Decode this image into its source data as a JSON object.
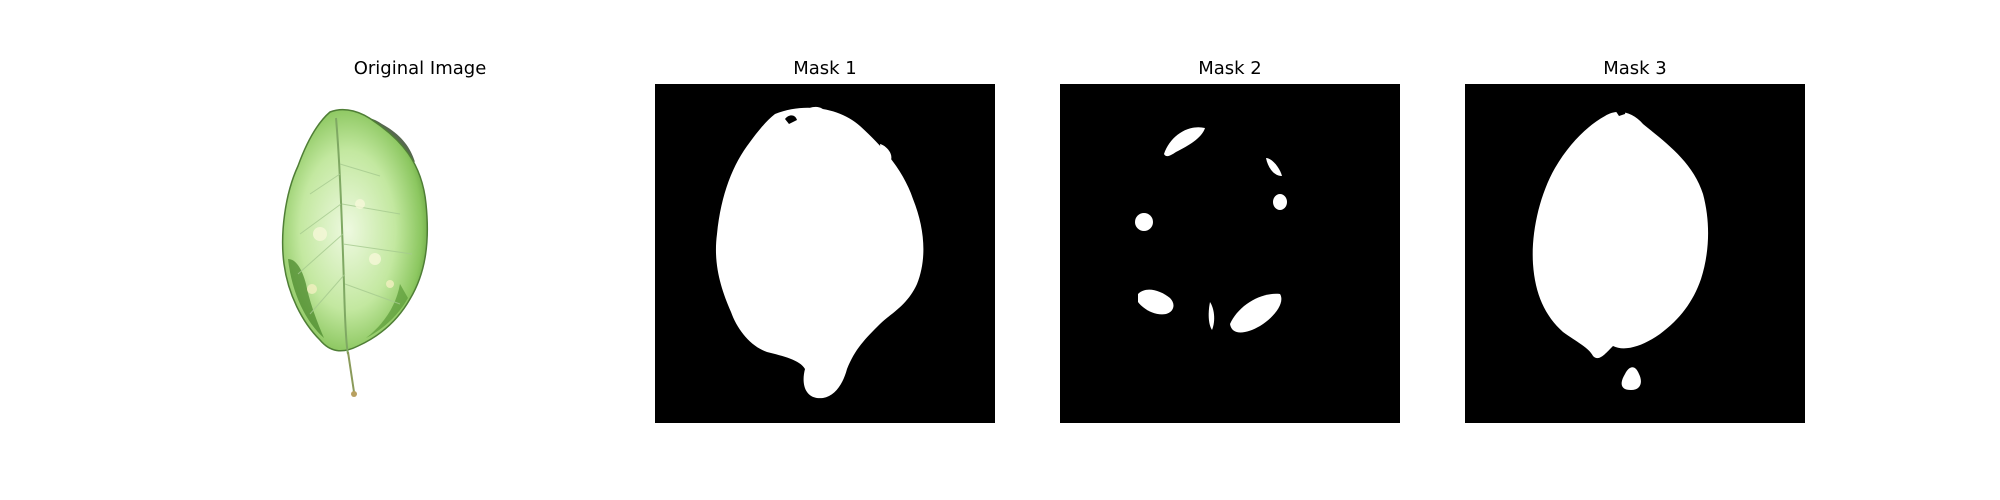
{
  "figure": {
    "panels": [
      {
        "title": "Original Image"
      },
      {
        "title": "Mask 1"
      },
      {
        "title": "Mask 2"
      },
      {
        "title": "Mask 3"
      }
    ]
  },
  "colors": {
    "background": "#ffffff",
    "mask_background": "#000000",
    "mask_foreground": "#ffffff",
    "leaf_light": "#dff3c9",
    "leaf_mid": "#a8dc84",
    "leaf_dark": "#5f9a3a",
    "leaf_shadow": "#2f4f2a"
  }
}
